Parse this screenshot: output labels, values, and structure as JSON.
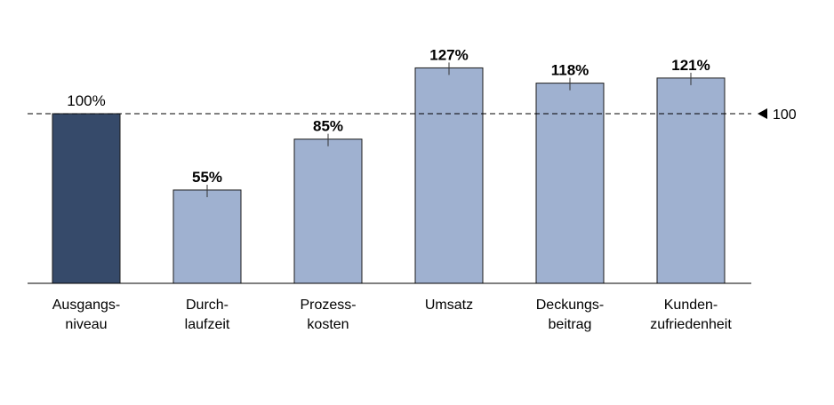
{
  "chart_data": {
    "type": "bar",
    "categories": [
      [
        "Ausgangs-",
        "niveau"
      ],
      [
        "Durch-",
        "laufzeit"
      ],
      [
        "Prozess-",
        "kosten"
      ],
      [
        "Umsatz"
      ],
      [
        "Deckungs-",
        "beitrag"
      ],
      [
        "Kunden-",
        "zufriedenheit"
      ]
    ],
    "values": [
      100,
      55,
      85,
      127,
      118,
      121
    ],
    "value_labels": [
      "100%",
      "55%",
      "85%",
      "127%",
      "118%",
      "121%"
    ],
    "baseline_bar_color": "#364a6a",
    "bar_color": "#9fb1d0",
    "bar_border_color": "#1c1c1c",
    "reference_line": {
      "value": 100,
      "label": "100",
      "style": "dashed",
      "marker": "left-pointing triangle"
    },
    "ylim": [
      0,
      150
    ],
    "grid": false,
    "legend": "none",
    "title": "",
    "xlabel": "",
    "ylabel": ""
  }
}
